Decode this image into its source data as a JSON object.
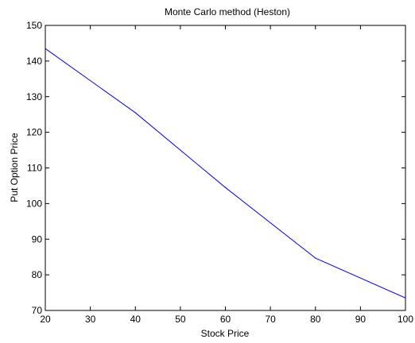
{
  "chart_data": {
    "type": "line",
    "title": "Monte Carlo method (Heston)",
    "xlabel": "Stock Price",
    "ylabel": "Put Option Price",
    "xlim": [
      20,
      100
    ],
    "ylim": [
      70,
      150
    ],
    "xticks": [
      20,
      30,
      40,
      50,
      60,
      70,
      80,
      90,
      100
    ],
    "yticks": [
      70,
      80,
      90,
      100,
      110,
      120,
      130,
      140,
      150
    ],
    "grid": false,
    "series": [
      {
        "color": "#0000ff",
        "x": [
          20,
          40,
          60,
          80,
          100
        ],
        "y": [
          143.5,
          125.5,
          104.5,
          84.7,
          73.5
        ]
      }
    ]
  }
}
